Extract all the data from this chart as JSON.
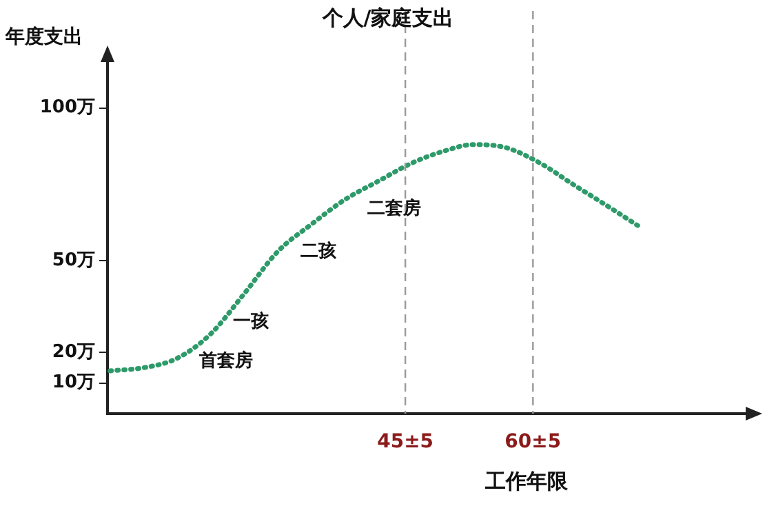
{
  "chart_data": {
    "type": "line",
    "title": "个人/家庭支出",
    "ylabel": "年度支出",
    "xlabel": "工作年限",
    "x": [
      10.3,
      14.2,
      18.1,
      22.1,
      26,
      30,
      34,
      37.9,
      41.8,
      45.8,
      49.7,
      52.9,
      56.8,
      60.8,
      64.7,
      68.7,
      72.6
    ],
    "series": [
      {
        "color": "#2e9a6a",
        "values": [
          14,
          15,
          18,
          26,
          39,
          53,
          62,
          70,
          76,
          82,
          86,
          88,
          87,
          82,
          75,
          68,
          61
        ]
      }
    ],
    "xlim": [
      10,
      85
    ],
    "ylim": [
      0,
      115
    ],
    "yticks": [
      {
        "value": 10,
        "label": "10万"
      },
      {
        "value": 20,
        "label": "20万"
      },
      {
        "value": 50,
        "label": "50万"
      },
      {
        "value": 100,
        "label": "100万"
      }
    ],
    "tick_labels": "y",
    "grid": false,
    "legend": false,
    "marker": "none",
    "line_style": "dotted",
    "ref_lines": [
      {
        "axis": "x",
        "value": 45,
        "label": "45±5",
        "color": "#999999",
        "line_style": "dashed"
      },
      {
        "axis": "x",
        "value": 60,
        "label": "60±5",
        "color": "#999999",
        "line_style": "dashed"
      }
    ],
    "annotations": [
      {
        "text": "首套房",
        "x": 22.1,
        "y": 26
      },
      {
        "text": "一孩",
        "x": 26,
        "y": 39
      },
      {
        "text": "二孩",
        "x": 34,
        "y": 62
      },
      {
        "text": "二套房",
        "x": 41.8,
        "y": 76
      }
    ]
  }
}
